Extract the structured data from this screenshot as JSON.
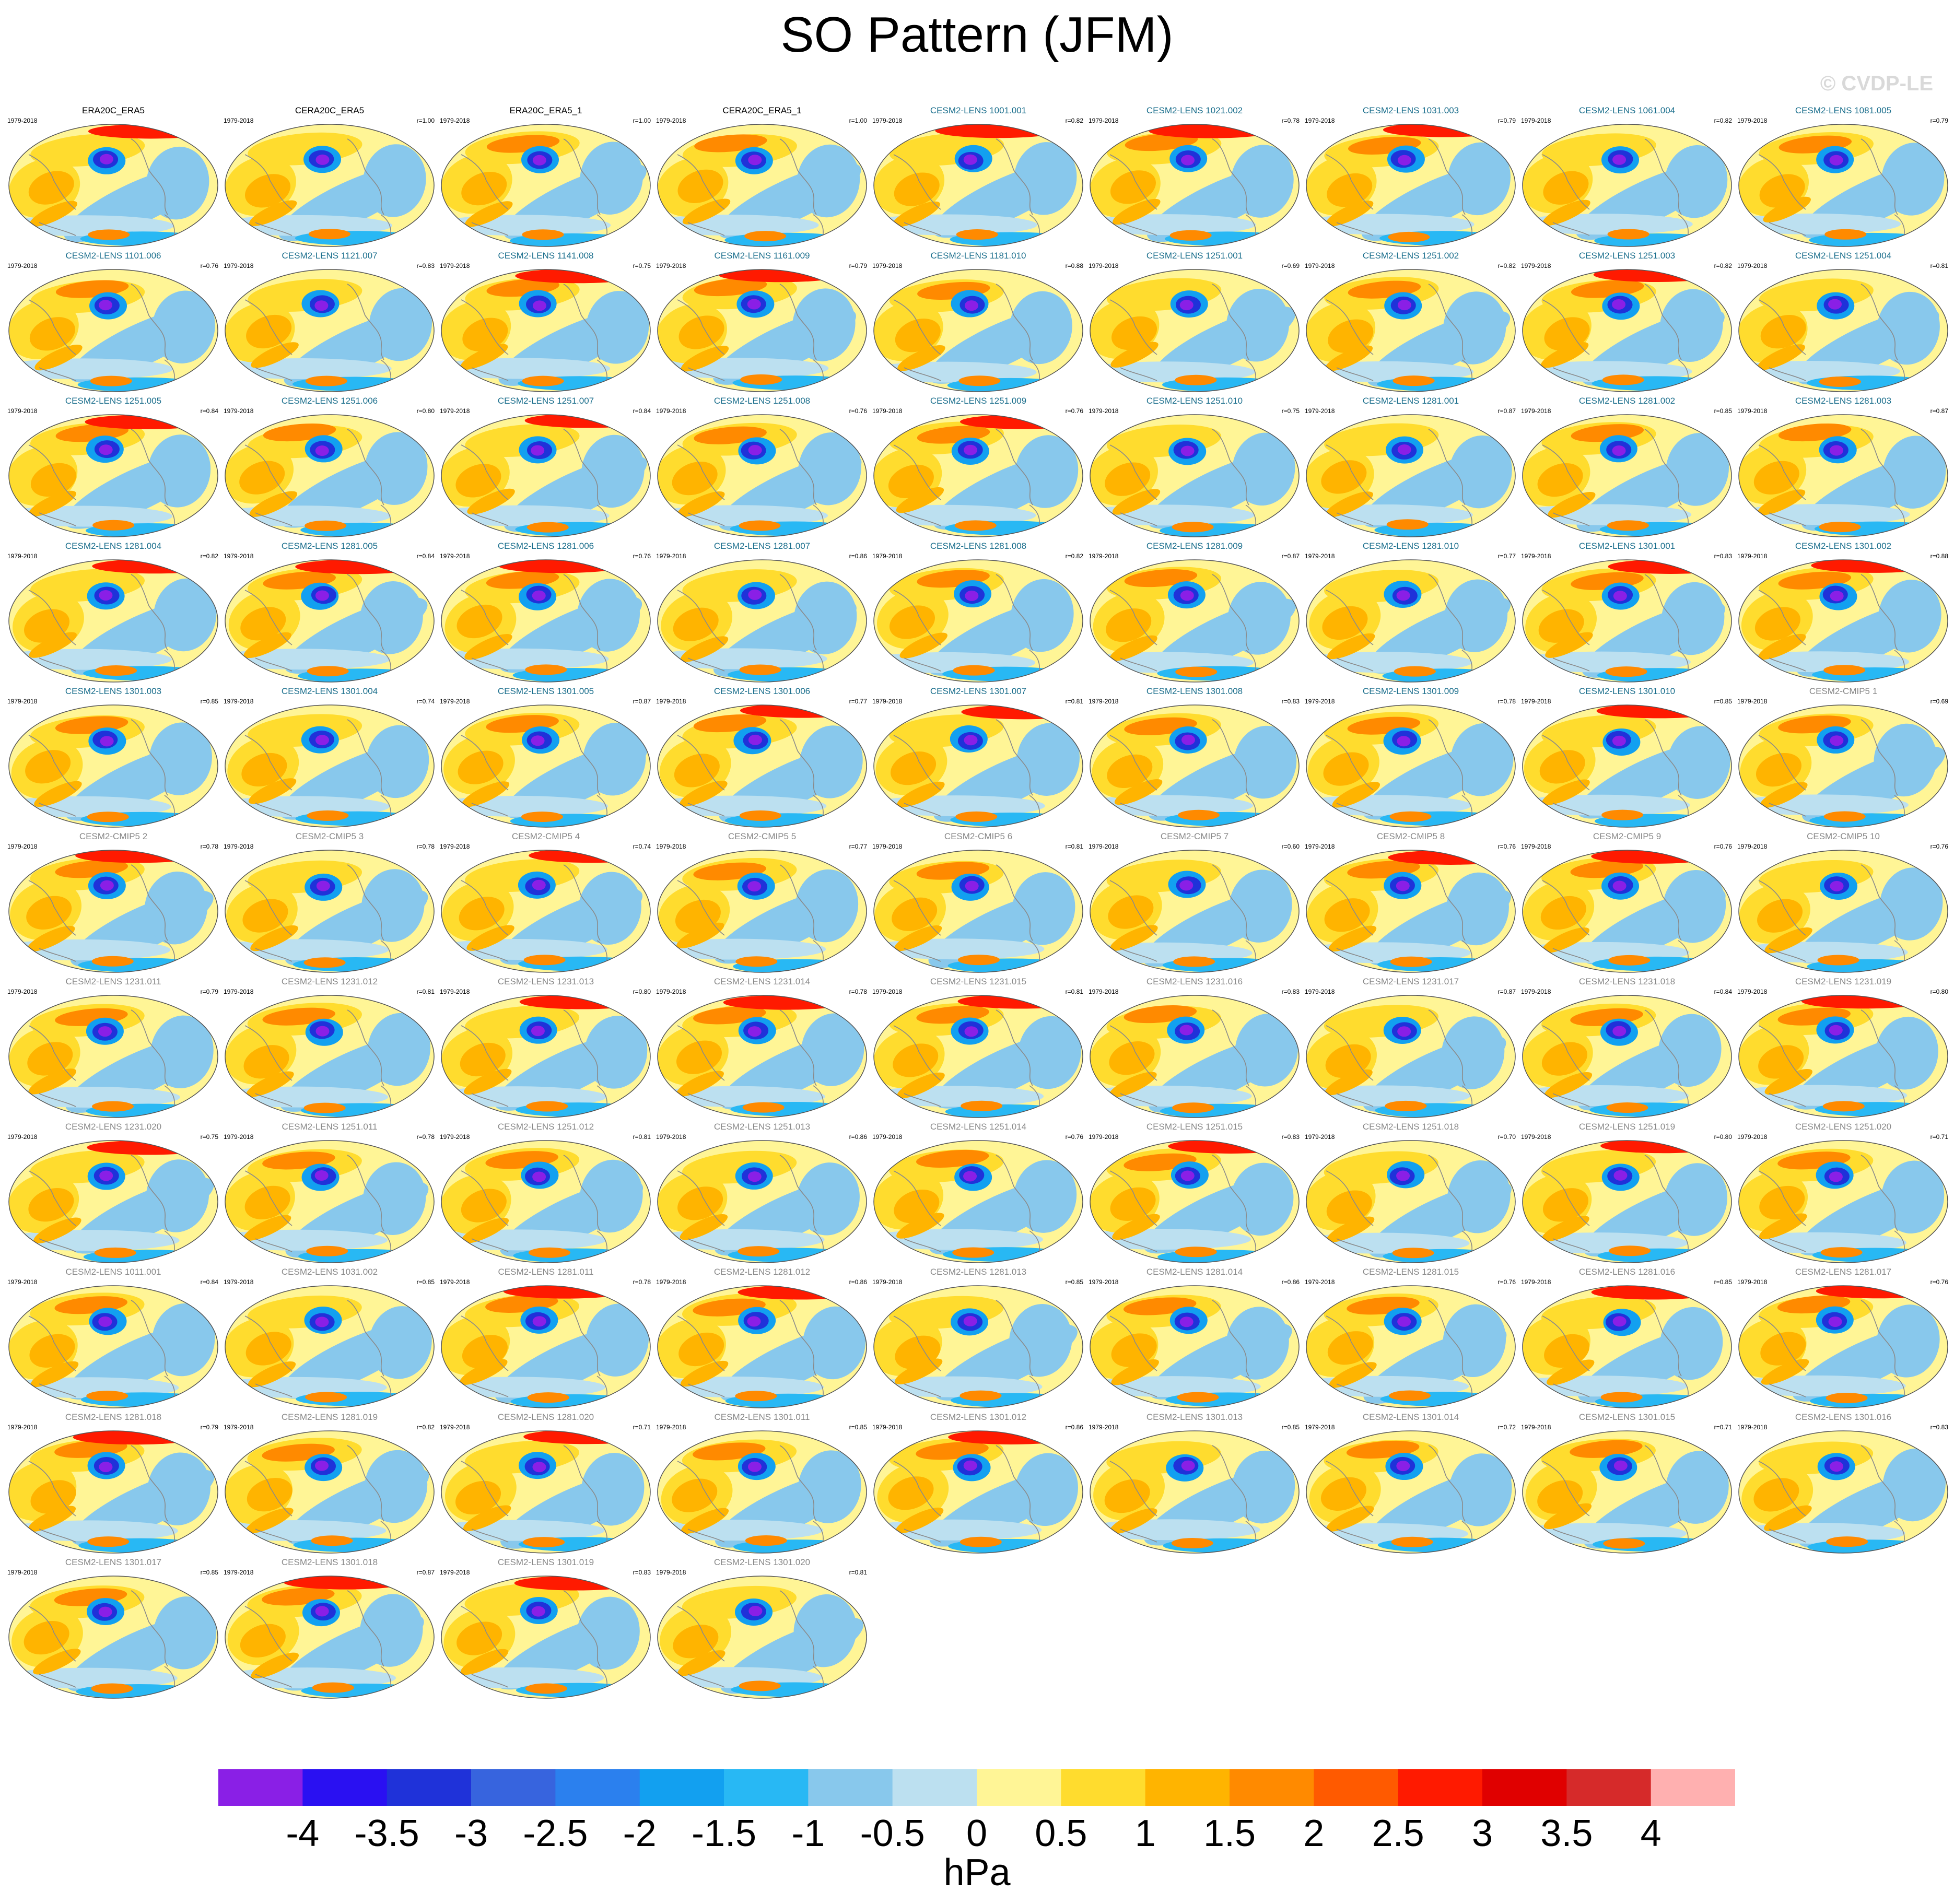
{
  "title": "SO Pattern (JFM)",
  "watermark": "© CVDP-LE",
  "colors": {
    "obs_title": "#000000",
    "lens_title": "#1a6e8c",
    "cmip_title": "#888888"
  },
  "colorbar": {
    "units": "hPa",
    "ticks": [
      "-4",
      "-3.5",
      "-3",
      "-2.5",
      "-2",
      "-1.5",
      "-1",
      "-0.5",
      "0",
      "0.5",
      "1",
      "1.5",
      "2",
      "2.5",
      "3",
      "3.5",
      "4"
    ],
    "colors": [
      "#8a1fe6",
      "#2a10f2",
      "#1f32d9",
      "#3764de",
      "#2b80ee",
      "#12a0f0",
      "#28b8f4",
      "#88c8ec",
      "#bce0f0",
      "#fff596",
      "#ffdc2e",
      "#ffb400",
      "#ff8a00",
      "#ff5a00",
      "#ff1a00",
      "#e00000",
      "#d62a2a",
      "#ffb0b0"
    ]
  },
  "chart_data": {
    "type": "heatmap",
    "title": "SO Pattern (JFM)",
    "units": "hPa",
    "range": [
      -4,
      4
    ],
    "panels": [
      {
        "title": "ERA20C_ERA5",
        "years": "1979-2018",
        "r": "",
        "group": "obs"
      },
      {
        "title": "CERA20C_ERA5",
        "years": "1979-2018",
        "r": "r=1.00",
        "group": "obs"
      },
      {
        "title": "ERA20C_ERA5_1",
        "years": "1979-2018",
        "r": "r=1.00",
        "group": "obs"
      },
      {
        "title": "CERA20C_ERA5_1",
        "years": "1979-2018",
        "r": "r=1.00",
        "group": "obs"
      },
      {
        "title": "CESM2-LENS 1001.001",
        "years": "1979-2018",
        "r": "r=0.82",
        "group": "lens"
      },
      {
        "title": "CESM2-LENS 1021.002",
        "years": "1979-2018",
        "r": "r=0.78",
        "group": "lens"
      },
      {
        "title": "CESM2-LENS 1031.003",
        "years": "1979-2018",
        "r": "r=0.79",
        "group": "lens"
      },
      {
        "title": "CESM2-LENS 1061.004",
        "years": "1979-2018",
        "r": "r=0.82",
        "group": "lens"
      },
      {
        "title": "CESM2-LENS 1081.005",
        "years": "1979-2018",
        "r": "r=0.79",
        "group": "lens"
      },
      {
        "title": "CESM2-LENS 1101.006",
        "years": "1979-2018",
        "r": "r=0.76",
        "group": "lens"
      },
      {
        "title": "CESM2-LENS 1121.007",
        "years": "1979-2018",
        "r": "r=0.83",
        "group": "lens"
      },
      {
        "title": "CESM2-LENS 1141.008",
        "years": "1979-2018",
        "r": "r=0.75",
        "group": "lens"
      },
      {
        "title": "CESM2-LENS 1161.009",
        "years": "1979-2018",
        "r": "r=0.79",
        "group": "lens"
      },
      {
        "title": "CESM2-LENS 1181.010",
        "years": "1979-2018",
        "r": "r=0.88",
        "group": "lens"
      },
      {
        "title": "CESM2-LENS 1251.001",
        "years": "1979-2018",
        "r": "r=0.69",
        "group": "lens"
      },
      {
        "title": "CESM2-LENS 1251.002",
        "years": "1979-2018",
        "r": "r=0.82",
        "group": "lens"
      },
      {
        "title": "CESM2-LENS 1251.003",
        "years": "1979-2018",
        "r": "r=0.82",
        "group": "lens"
      },
      {
        "title": "CESM2-LENS 1251.004",
        "years": "1979-2018",
        "r": "r=0.81",
        "group": "lens"
      },
      {
        "title": "CESM2-LENS 1251.005",
        "years": "1979-2018",
        "r": "r=0.84",
        "group": "lens"
      },
      {
        "title": "CESM2-LENS 1251.006",
        "years": "1979-2018",
        "r": "r=0.80",
        "group": "lens"
      },
      {
        "title": "CESM2-LENS 1251.007",
        "years": "1979-2018",
        "r": "r=0.84",
        "group": "lens"
      },
      {
        "title": "CESM2-LENS 1251.008",
        "years": "1979-2018",
        "r": "r=0.76",
        "group": "lens"
      },
      {
        "title": "CESM2-LENS 1251.009",
        "years": "1979-2018",
        "r": "r=0.76",
        "group": "lens"
      },
      {
        "title": "CESM2-LENS 1251.010",
        "years": "1979-2018",
        "r": "r=0.75",
        "group": "lens"
      },
      {
        "title": "CESM2-LENS 1281.001",
        "years": "1979-2018",
        "r": "r=0.87",
        "group": "lens"
      },
      {
        "title": "CESM2-LENS 1281.002",
        "years": "1979-2018",
        "r": "r=0.85",
        "group": "lens"
      },
      {
        "title": "CESM2-LENS 1281.003",
        "years": "1979-2018",
        "r": "r=0.87",
        "group": "lens"
      },
      {
        "title": "CESM2-LENS 1281.004",
        "years": "1979-2018",
        "r": "r=0.82",
        "group": "lens"
      },
      {
        "title": "CESM2-LENS 1281.005",
        "years": "1979-2018",
        "r": "r=0.84",
        "group": "lens"
      },
      {
        "title": "CESM2-LENS 1281.006",
        "years": "1979-2018",
        "r": "r=0.76",
        "group": "lens"
      },
      {
        "title": "CESM2-LENS 1281.007",
        "years": "1979-2018",
        "r": "r=0.86",
        "group": "lens"
      },
      {
        "title": "CESM2-LENS 1281.008",
        "years": "1979-2018",
        "r": "r=0.82",
        "group": "lens"
      },
      {
        "title": "CESM2-LENS 1281.009",
        "years": "1979-2018",
        "r": "r=0.87",
        "group": "lens"
      },
      {
        "title": "CESM2-LENS 1281.010",
        "years": "1979-2018",
        "r": "r=0.77",
        "group": "lens"
      },
      {
        "title": "CESM2-LENS 1301.001",
        "years": "1979-2018",
        "r": "r=0.83",
        "group": "lens"
      },
      {
        "title": "CESM2-LENS 1301.002",
        "years": "1979-2018",
        "r": "r=0.88",
        "group": "lens"
      },
      {
        "title": "CESM2-LENS 1301.003",
        "years": "1979-2018",
        "r": "r=0.85",
        "group": "lens"
      },
      {
        "title": "CESM2-LENS 1301.004",
        "years": "1979-2018",
        "r": "r=0.74",
        "group": "lens"
      },
      {
        "title": "CESM2-LENS 1301.005",
        "years": "1979-2018",
        "r": "r=0.87",
        "group": "lens"
      },
      {
        "title": "CESM2-LENS 1301.006",
        "years": "1979-2018",
        "r": "r=0.77",
        "group": "lens"
      },
      {
        "title": "CESM2-LENS 1301.007",
        "years": "1979-2018",
        "r": "r=0.81",
        "group": "lens"
      },
      {
        "title": "CESM2-LENS 1301.008",
        "years": "1979-2018",
        "r": "r=0.83",
        "group": "lens"
      },
      {
        "title": "CESM2-LENS 1301.009",
        "years": "1979-2018",
        "r": "r=0.78",
        "group": "lens"
      },
      {
        "title": "CESM2-LENS 1301.010",
        "years": "1979-2018",
        "r": "r=0.85",
        "group": "lens"
      },
      {
        "title": "CESM2-CMIP5 1",
        "years": "1979-2018",
        "r": "r=0.69",
        "group": "cmip"
      },
      {
        "title": "CESM2-CMIP5 2",
        "years": "1979-2018",
        "r": "r=0.78",
        "group": "cmip"
      },
      {
        "title": "CESM2-CMIP5 3",
        "years": "1979-2018",
        "r": "r=0.78",
        "group": "cmip"
      },
      {
        "title": "CESM2-CMIP5 4",
        "years": "1979-2018",
        "r": "r=0.74",
        "group": "cmip"
      },
      {
        "title": "CESM2-CMIP5 5",
        "years": "1979-2018",
        "r": "r=0.77",
        "group": "cmip"
      },
      {
        "title": "CESM2-CMIP5 6",
        "years": "1979-2018",
        "r": "r=0.81",
        "group": "cmip"
      },
      {
        "title": "CESM2-CMIP5 7",
        "years": "1979-2018",
        "r": "r=0.60",
        "group": "cmip"
      },
      {
        "title": "CESM2-CMIP5 8",
        "years": "1979-2018",
        "r": "r=0.76",
        "group": "cmip"
      },
      {
        "title": "CESM2-CMIP5 9",
        "years": "1979-2018",
        "r": "r=0.76",
        "group": "cmip"
      },
      {
        "title": "CESM2-CMIP5 10",
        "years": "1979-2018",
        "r": "r=0.76",
        "group": "cmip"
      },
      {
        "title": "CESM2-LENS 1231.011",
        "years": "1979-2018",
        "r": "r=0.79",
        "group": "cmip"
      },
      {
        "title": "CESM2-LENS 1231.012",
        "years": "1979-2018",
        "r": "r=0.81",
        "group": "cmip"
      },
      {
        "title": "CESM2-LENS 1231.013",
        "years": "1979-2018",
        "r": "r=0.80",
        "group": "cmip"
      },
      {
        "title": "CESM2-LENS 1231.014",
        "years": "1979-2018",
        "r": "r=0.78",
        "group": "cmip"
      },
      {
        "title": "CESM2-LENS 1231.015",
        "years": "1979-2018",
        "r": "r=0.81",
        "group": "cmip"
      },
      {
        "title": "CESM2-LENS 1231.016",
        "years": "1979-2018",
        "r": "r=0.83",
        "group": "cmip"
      },
      {
        "title": "CESM2-LENS 1231.017",
        "years": "1979-2018",
        "r": "r=0.87",
        "group": "cmip"
      },
      {
        "title": "CESM2-LENS 1231.018",
        "years": "1979-2018",
        "r": "r=0.84",
        "group": "cmip"
      },
      {
        "title": "CESM2-LENS 1231.019",
        "years": "1979-2018",
        "r": "r=0.80",
        "group": "cmip"
      },
      {
        "title": "CESM2-LENS 1231.020",
        "years": "1979-2018",
        "r": "r=0.75",
        "group": "cmip"
      },
      {
        "title": "CESM2-LENS 1251.011",
        "years": "1979-2018",
        "r": "r=0.78",
        "group": "cmip"
      },
      {
        "title": "CESM2-LENS 1251.012",
        "years": "1979-2018",
        "r": "r=0.81",
        "group": "cmip"
      },
      {
        "title": "CESM2-LENS 1251.013",
        "years": "1979-2018",
        "r": "r=0.86",
        "group": "cmip"
      },
      {
        "title": "CESM2-LENS 1251.014",
        "years": "1979-2018",
        "r": "r=0.76",
        "group": "cmip"
      },
      {
        "title": "CESM2-LENS 1251.015",
        "years": "1979-2018",
        "r": "r=0.83",
        "group": "cmip"
      },
      {
        "title": "CESM2-LENS 1251.018",
        "years": "1979-2018",
        "r": "r=0.70",
        "group": "cmip"
      },
      {
        "title": "CESM2-LENS 1251.019",
        "years": "1979-2018",
        "r": "r=0.80",
        "group": "cmip"
      },
      {
        "title": "CESM2-LENS 1251.020",
        "years": "1979-2018",
        "r": "r=0.71",
        "group": "cmip"
      },
      {
        "title": "CESM2-LENS 1011.001",
        "years": "1979-2018",
        "r": "r=0.84",
        "group": "cmip"
      },
      {
        "title": "CESM2-LENS 1031.002",
        "years": "1979-2018",
        "r": "r=0.85",
        "group": "cmip"
      },
      {
        "title": "CESM2-LENS 1281.011",
        "years": "1979-2018",
        "r": "r=0.78",
        "group": "cmip"
      },
      {
        "title": "CESM2-LENS 1281.012",
        "years": "1979-2018",
        "r": "r=0.86",
        "group": "cmip"
      },
      {
        "title": "CESM2-LENS 1281.013",
        "years": "1979-2018",
        "r": "r=0.85",
        "group": "cmip"
      },
      {
        "title": "CESM2-LENS 1281.014",
        "years": "1979-2018",
        "r": "r=0.86",
        "group": "cmip"
      },
      {
        "title": "CESM2-LENS 1281.015",
        "years": "1979-2018",
        "r": "r=0.76",
        "group": "cmip"
      },
      {
        "title": "CESM2-LENS 1281.016",
        "years": "1979-2018",
        "r": "r=0.85",
        "group": "cmip"
      },
      {
        "title": "CESM2-LENS 1281.017",
        "years": "1979-2018",
        "r": "r=0.76",
        "group": "cmip"
      },
      {
        "title": "CESM2-LENS 1281.018",
        "years": "1979-2018",
        "r": "r=0.79",
        "group": "cmip"
      },
      {
        "title": "CESM2-LENS 1281.019",
        "years": "1979-2018",
        "r": "r=0.82",
        "group": "cmip"
      },
      {
        "title": "CESM2-LENS 1281.020",
        "years": "1979-2018",
        "r": "r=0.71",
        "group": "cmip"
      },
      {
        "title": "CESM2-LENS 1301.011",
        "years": "1979-2018",
        "r": "r=0.85",
        "group": "cmip"
      },
      {
        "title": "CESM2-LENS 1301.012",
        "years": "1979-2018",
        "r": "r=0.86",
        "group": "cmip"
      },
      {
        "title": "CESM2-LENS 1301.013",
        "years": "1979-2018",
        "r": "r=0.85",
        "group": "cmip"
      },
      {
        "title": "CESM2-LENS 1301.014",
        "years": "1979-2018",
        "r": "r=0.72",
        "group": "cmip"
      },
      {
        "title": "CESM2-LENS 1301.015",
        "years": "1979-2018",
        "r": "r=0.71",
        "group": "cmip"
      },
      {
        "title": "CESM2-LENS 1301.016",
        "years": "1979-2018",
        "r": "r=0.83",
        "group": "cmip"
      },
      {
        "title": "CESM2-LENS 1301.017",
        "years": "1979-2018",
        "r": "r=0.85",
        "group": "cmip"
      },
      {
        "title": "CESM2-LENS 1301.018",
        "years": "1979-2018",
        "r": "r=0.87",
        "group": "cmip"
      },
      {
        "title": "CESM2-LENS 1301.019",
        "years": "1979-2018",
        "r": "r=0.83",
        "group": "cmip"
      },
      {
        "title": "CESM2-LENS 1301.020",
        "years": "1979-2018",
        "r": "r=0.81",
        "group": "cmip"
      }
    ]
  }
}
